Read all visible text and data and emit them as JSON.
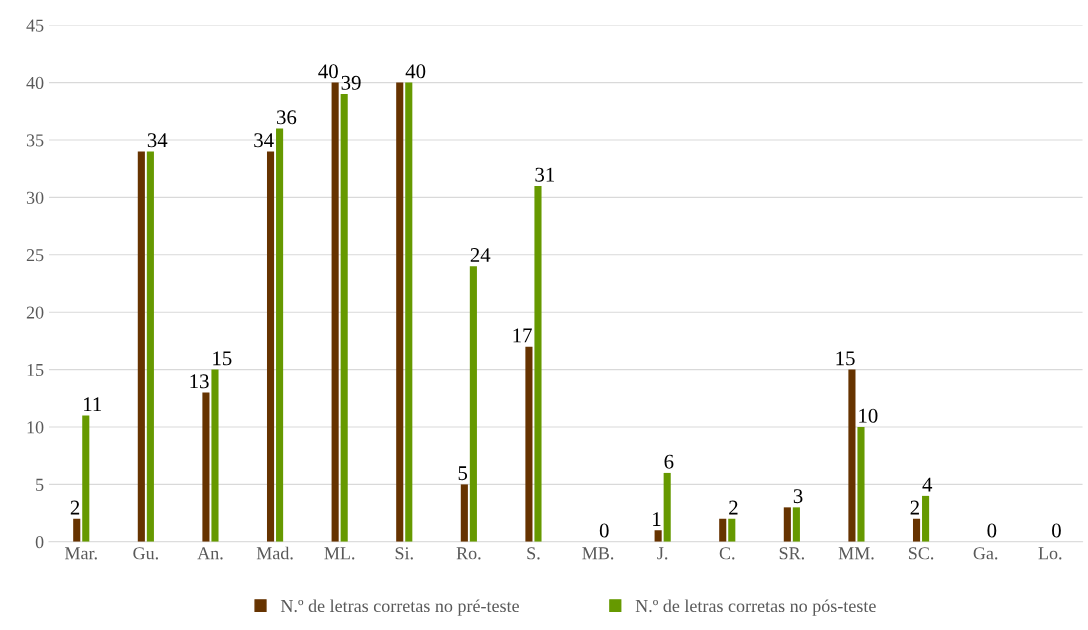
{
  "chart_data": {
    "type": "bar",
    "categories": [
      "Mar.",
      "Gu.",
      "An.",
      "Mad.",
      "ML.",
      "Si.",
      "Ro.",
      "S.",
      "MB.",
      "J.",
      "C.",
      "SR.",
      "MM.",
      "SC.",
      "Ga.",
      "Lo."
    ],
    "series": [
      {
        "name": "N.º de letras corretas no pré-teste",
        "color": "#663300",
        "values": [
          2,
          34,
          13,
          34,
          40,
          40,
          5,
          17,
          0,
          1,
          2,
          3,
          15,
          2,
          0,
          0
        ],
        "value_labels": [
          "2",
          null,
          "13",
          "34",
          "40",
          null,
          "5",
          "17",
          null,
          "1",
          null,
          null,
          "15",
          "2",
          null,
          null
        ]
      },
      {
        "name": "N.º de letras corretas no pós-teste",
        "color": "#669900",
        "values": [
          11,
          34,
          15,
          36,
          39,
          40,
          24,
          31,
          0,
          6,
          2,
          3,
          10,
          4,
          0,
          0
        ],
        "value_labels": [
          "11",
          "34",
          "15",
          "36",
          "39",
          "40",
          "24",
          "31",
          "0",
          "6",
          "2",
          "3",
          "10",
          "4",
          "0",
          "0"
        ]
      }
    ],
    "ylim": [
      0,
      45
    ],
    "yticks": [
      0,
      5,
      10,
      15,
      20,
      25,
      30,
      35,
      40,
      45
    ],
    "grid": "y",
    "legend": "bottom"
  }
}
